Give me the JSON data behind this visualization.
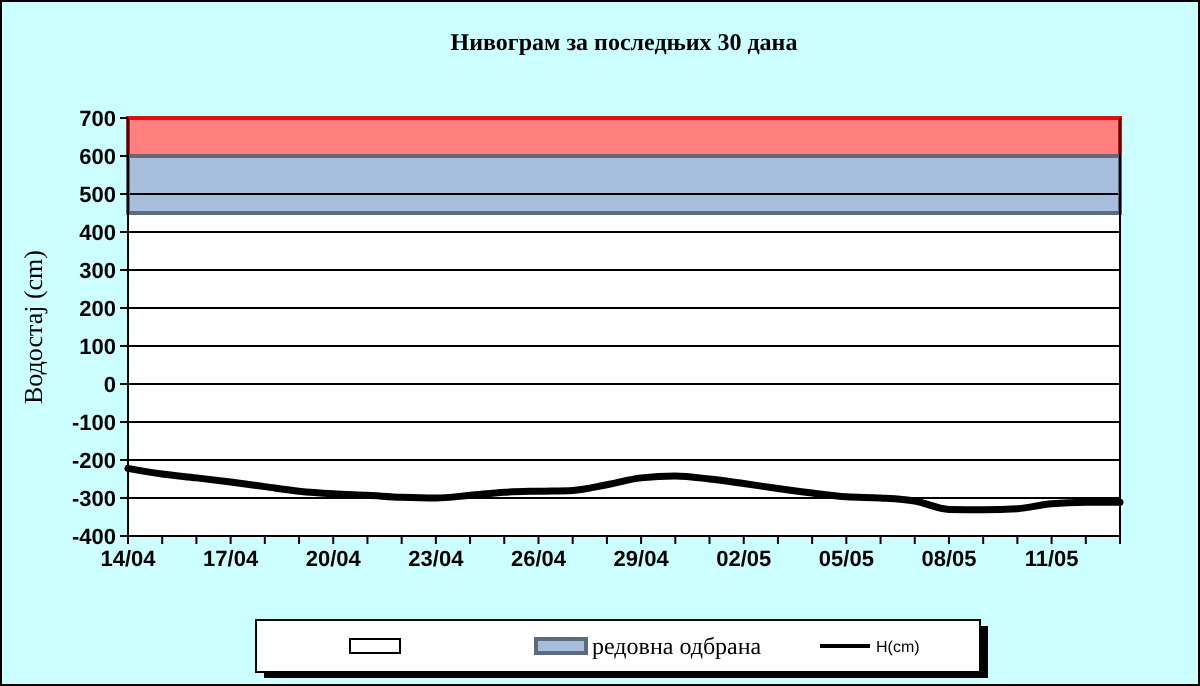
{
  "chart_data": {
    "type": "line",
    "title": "Нивограм за последњих 30 дана",
    "ylabel": "Водостај (cm)",
    "x": [
      "--04-14",
      "--04-15",
      "--04-16",
      "--04-17",
      "--04-18",
      "--04-19",
      "--04-20",
      "--04-21",
      "--04-22",
      "--04-23",
      "--04-24",
      "--04-25",
      "--04-26",
      "--04-27",
      "--04-28",
      "--04-29",
      "--04-30",
      "--05-01",
      "--05-02",
      "--05-03",
      "--05-04",
      "--05-05",
      "--05-06",
      "--05-07",
      "--05-08",
      "--05-09",
      "--05-10",
      "--05-11",
      "--05-12",
      "--05-13"
    ],
    "series": [
      {
        "name": "H(cm)",
        "color": "#000000",
        "values": [
          -222,
          -237,
          -247,
          -258,
          -270,
          -282,
          -289,
          -293,
          -298,
          -300,
          -293,
          -285,
          -282,
          -280,
          -265,
          -247,
          -242,
          -250,
          -262,
          -275,
          -287,
          -297,
          -300,
          -308,
          -330,
          -331,
          -328,
          -315,
          -311,
          -311
        ]
      }
    ],
    "xlim": [
      "--04-14",
      "--05-13"
    ],
    "xticks": [
      {
        "value": "--04-14",
        "label": "14/04"
      },
      {
        "value": "--04-15",
        "label": null
      },
      {
        "value": "--04-16",
        "label": null
      },
      {
        "value": "--04-17",
        "label": "17/04"
      },
      {
        "value": "--04-18",
        "label": null
      },
      {
        "value": "--04-19",
        "label": null
      },
      {
        "value": "--04-20",
        "label": "20/04"
      },
      {
        "value": "--04-21",
        "label": null
      },
      {
        "value": "--04-22",
        "label": null
      },
      {
        "value": "--04-23",
        "label": "23/04"
      },
      {
        "value": "--04-24",
        "label": null
      },
      {
        "value": "--04-25",
        "label": null
      },
      {
        "value": "--04-26",
        "label": "26/04"
      },
      {
        "value": "--04-27",
        "label": null
      },
      {
        "value": "--04-28",
        "label": null
      },
      {
        "value": "--04-29",
        "label": "29/04"
      },
      {
        "value": "--04-30",
        "label": null
      },
      {
        "value": "--05-01",
        "label": null
      },
      {
        "value": "--05-02",
        "label": "02/05"
      },
      {
        "value": "--05-03",
        "label": null
      },
      {
        "value": "--05-04",
        "label": null
      },
      {
        "value": "--05-05",
        "label": "05/05"
      },
      {
        "value": "--05-06",
        "label": null
      },
      {
        "value": "--05-07",
        "label": null
      },
      {
        "value": "--05-08",
        "label": "08/05"
      },
      {
        "value": "--05-09",
        "label": null
      },
      {
        "value": "--05-10",
        "label": null
      },
      {
        "value": "--05-11",
        "label": "11/05"
      },
      {
        "value": "--05-12",
        "label": null
      },
      {
        "value": "--05-13",
        "label": null
      }
    ],
    "ylim": [
      -400,
      700
    ],
    "yticks": [
      -400,
      -300,
      -200,
      -100,
      0,
      100,
      200,
      300,
      400,
      500,
      600,
      700
    ],
    "bands": [
      {
        "axis": "y",
        "from": 600,
        "to": 700,
        "color": "#ff7f7f"
      },
      {
        "axis": "y",
        "from": 450,
        "to": 600,
        "label": "редовна одбрана",
        "color": "#a6bddb"
      }
    ],
    "grid": "y",
    "legend": "bottom"
  }
}
